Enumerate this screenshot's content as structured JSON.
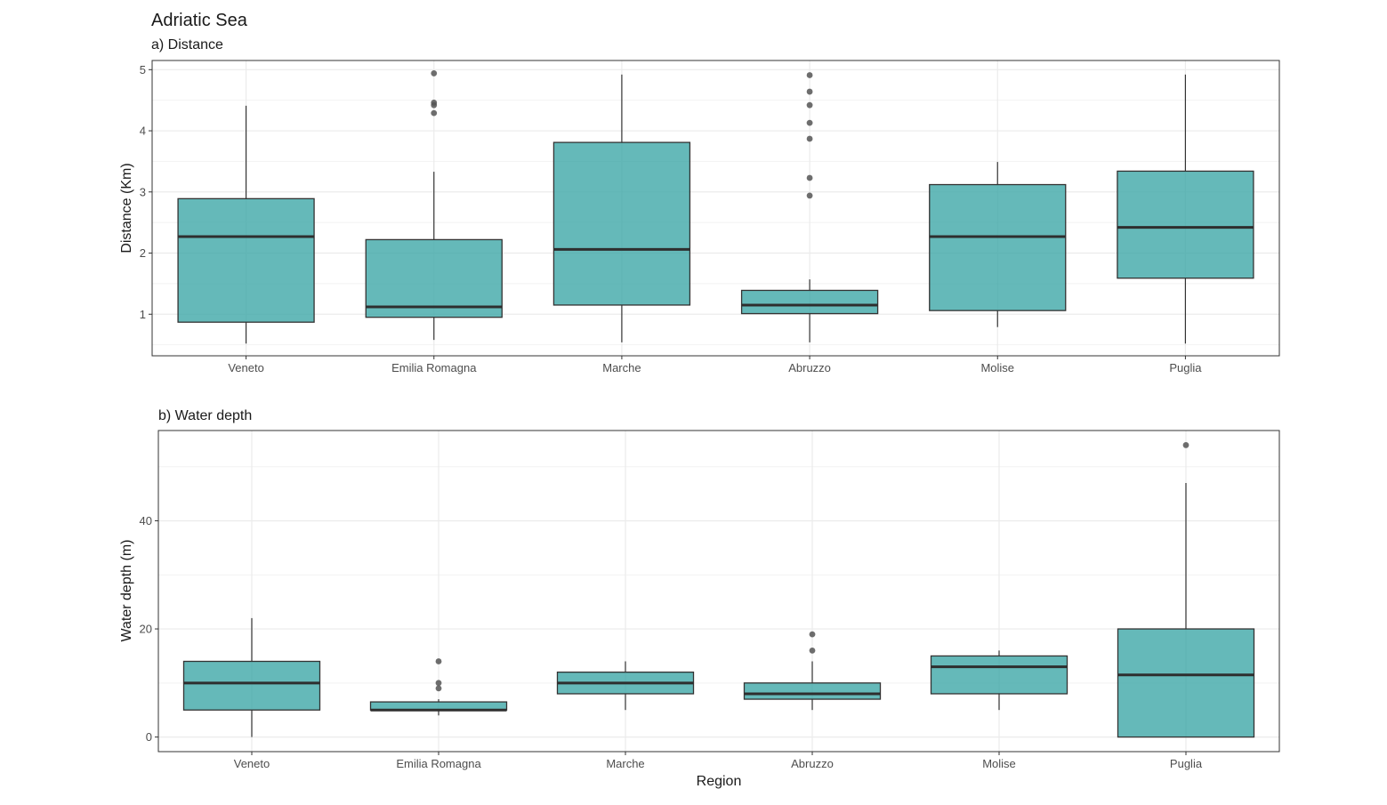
{
  "title": "Adriatic Sea",
  "xlabel": "Region",
  "colors": {
    "box_fill": "#3aa5a5",
    "box_stroke": "#333333",
    "median": "#2e2e2e",
    "outlier": "#555555",
    "grid": "#ebebeb",
    "panel_border": "#333333"
  },
  "chart_data": [
    {
      "type": "box",
      "panel_label": "a)  Distance",
      "ylabel": "Distance (Km)",
      "ylim": [
        0.32,
        5.15
      ],
      "yticks": [
        1,
        2,
        3,
        4,
        5
      ],
      "categories": [
        "Veneto",
        "Emilia Romagna",
        "Marche",
        "Abruzzo",
        "Molise",
        "Puglia"
      ],
      "boxes": [
        {
          "category": "Veneto",
          "whisker_low": 0.52,
          "q1": 0.87,
          "median": 2.27,
          "q3": 2.89,
          "whisker_high": 4.41,
          "outliers": []
        },
        {
          "category": "Emilia Romagna",
          "whisker_low": 0.58,
          "q1": 0.95,
          "median": 1.12,
          "q3": 2.22,
          "whisker_high": 3.33,
          "outliers": [
            4.29,
            4.42,
            4.46,
            4.94
          ]
        },
        {
          "category": "Marche",
          "whisker_low": 0.54,
          "q1": 1.15,
          "median": 2.06,
          "q3": 3.81,
          "whisker_high": 4.92,
          "outliers": []
        },
        {
          "category": "Abruzzo",
          "whisker_low": 0.54,
          "q1": 1.01,
          "median": 1.15,
          "q3": 1.39,
          "whisker_high": 1.57,
          "outliers": [
            2.94,
            3.23,
            3.87,
            4.13,
            4.42,
            4.64,
            4.91
          ]
        },
        {
          "category": "Molise",
          "whisker_low": 0.79,
          "q1": 1.06,
          "median": 2.27,
          "q3": 3.12,
          "whisker_high": 3.49,
          "outliers": []
        },
        {
          "category": "Puglia",
          "whisker_low": 0.52,
          "q1": 1.59,
          "median": 2.42,
          "q3": 3.34,
          "whisker_high": 4.92,
          "outliers": []
        }
      ]
    },
    {
      "type": "box",
      "panel_label": "b)  Water depth",
      "ylabel": "Water depth (m)",
      "ylim": [
        -2.7,
        56.7
      ],
      "yticks": [
        0,
        20,
        40
      ],
      "categories": [
        "Veneto",
        "Emilia Romagna",
        "Marche",
        "Abruzzo",
        "Molise",
        "Puglia"
      ],
      "boxes": [
        {
          "category": "Veneto",
          "whisker_low": 0,
          "q1": 5,
          "median": 10,
          "q3": 14,
          "whisker_high": 22,
          "outliers": []
        },
        {
          "category": "Emilia Romagna",
          "whisker_low": 4,
          "q1": 5,
          "median": 5,
          "q3": 6.5,
          "whisker_high": 7,
          "outliers": [
            9,
            10,
            14
          ]
        },
        {
          "category": "Marche",
          "whisker_low": 5,
          "q1": 8,
          "median": 10,
          "q3": 12,
          "whisker_high": 14,
          "outliers": []
        },
        {
          "category": "Abruzzo",
          "whisker_low": 5,
          "q1": 7,
          "median": 8,
          "q3": 10,
          "whisker_high": 14,
          "outliers": [
            16,
            19
          ]
        },
        {
          "category": "Molise",
          "whisker_low": 5,
          "q1": 8,
          "median": 13,
          "q3": 15,
          "whisker_high": 16,
          "outliers": []
        },
        {
          "category": "Puglia",
          "whisker_low": 0,
          "q1": 0,
          "median": 11.5,
          "q3": 20,
          "whisker_high": 47,
          "outliers": [
            54
          ]
        }
      ]
    }
  ]
}
